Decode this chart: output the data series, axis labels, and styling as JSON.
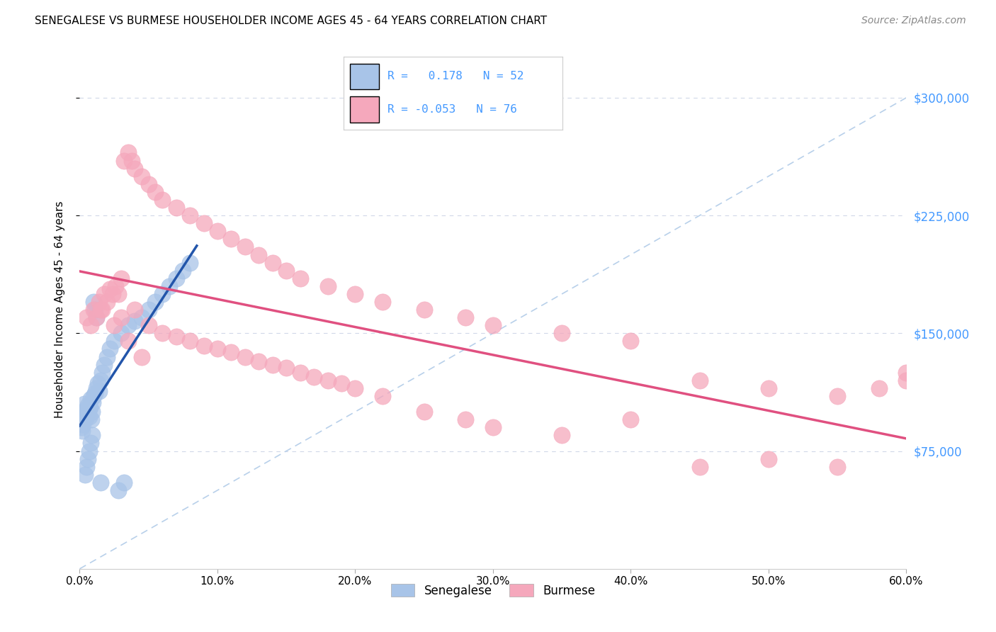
{
  "title": "SENEGALESE VS BURMESE HOUSEHOLDER INCOME AGES 45 - 64 YEARS CORRELATION CHART",
  "source": "Source: ZipAtlas.com",
  "ylabel_label": "Householder Income Ages 45 - 64 years",
  "legend_label1": "Senegalese",
  "legend_label2": "Burmese",
  "R1": 0.178,
  "N1": 52,
  "R2": -0.053,
  "N2": 76,
  "color_blue": "#a8c4e8",
  "color_pink": "#f5a8bc",
  "color_trendline_blue": "#2255aa",
  "color_trendline_pink": "#e05080",
  "color_diagonal": "#b8d0ea",
  "color_grid": "#d0d8e8",
  "color_axis_right": "#4499ff",
  "background_color": "#ffffff",
  "sen_x": [
    0.1,
    0.15,
    0.2,
    0.25,
    0.3,
    0.35,
    0.4,
    0.45,
    0.5,
    0.55,
    0.6,
    0.65,
    0.7,
    0.75,
    0.8,
    0.85,
    0.9,
    0.95,
    1.0,
    1.1,
    1.2,
    1.3,
    1.4,
    1.5,
    1.6,
    1.8,
    2.0,
    2.2,
    2.5,
    3.0,
    3.5,
    4.0,
    4.5,
    5.0,
    5.5,
    6.0,
    6.5,
    7.0,
    7.5,
    8.0,
    2.8,
    3.2,
    0.4,
    0.5,
    0.6,
    0.7,
    0.8,
    0.9,
    1.0,
    1.1,
    1.2,
    1.5
  ],
  "sen_y": [
    95000,
    90000,
    88000,
    92000,
    100000,
    105000,
    98000,
    96000,
    102000,
    99000,
    104000,
    101000,
    97000,
    103000,
    108000,
    95000,
    100000,
    106000,
    110000,
    112000,
    115000,
    118000,
    113000,
    120000,
    125000,
    130000,
    135000,
    140000,
    145000,
    150000,
    155000,
    158000,
    160000,
    165000,
    170000,
    175000,
    180000,
    185000,
    190000,
    195000,
    50000,
    55000,
    60000,
    65000,
    70000,
    75000,
    80000,
    85000,
    170000,
    165000,
    160000,
    55000
  ],
  "bur_x": [
    0.5,
    0.8,
    1.0,
    1.2,
    1.4,
    1.6,
    1.8,
    2.0,
    2.2,
    2.4,
    2.6,
    2.8,
    3.0,
    3.2,
    3.5,
    3.8,
    4.0,
    4.5,
    5.0,
    5.5,
    6.0,
    7.0,
    8.0,
    9.0,
    10.0,
    11.0,
    12.0,
    13.0,
    14.0,
    15.0,
    16.0,
    18.0,
    20.0,
    22.0,
    25.0,
    28.0,
    30.0,
    35.0,
    40.0,
    45.0,
    50.0,
    55.0,
    58.0,
    60.0,
    3.0,
    4.0,
    5.0,
    6.0,
    7.0,
    8.0,
    9.0,
    10.0,
    11.0,
    12.0,
    13.0,
    14.0,
    15.0,
    16.0,
    17.0,
    18.0,
    19.0,
    20.0,
    22.0,
    25.0,
    28.0,
    30.0,
    35.0,
    40.0,
    45.0,
    50.0,
    55.0,
    60.0,
    1.5,
    2.5,
    3.5,
    4.5
  ],
  "bur_y": [
    160000,
    155000,
    165000,
    160000,
    170000,
    165000,
    175000,
    170000,
    178000,
    175000,
    180000,
    175000,
    185000,
    260000,
    265000,
    260000,
    255000,
    250000,
    245000,
    240000,
    235000,
    230000,
    225000,
    220000,
    215000,
    210000,
    205000,
    200000,
    195000,
    190000,
    185000,
    180000,
    175000,
    170000,
    165000,
    160000,
    155000,
    150000,
    145000,
    120000,
    115000,
    110000,
    115000,
    125000,
    160000,
    165000,
    155000,
    150000,
    148000,
    145000,
    142000,
    140000,
    138000,
    135000,
    132000,
    130000,
    128000,
    125000,
    122000,
    120000,
    118000,
    115000,
    110000,
    100000,
    95000,
    90000,
    85000,
    95000,
    65000,
    70000,
    65000,
    120000,
    165000,
    155000,
    145000,
    135000
  ]
}
